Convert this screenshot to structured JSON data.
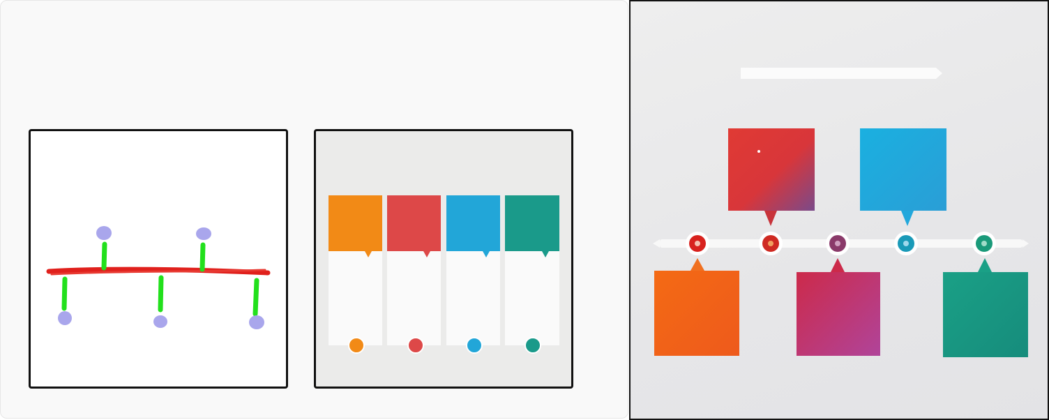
{
  "panels": {
    "sketch": {
      "nodes": 5,
      "colors": {
        "line": "#e0201c",
        "stem": "#22e01c",
        "node": "#a9a6ec"
      }
    },
    "template": {
      "cards": [
        {
          "color": "#f28a16"
        },
        {
          "color": "#dd4848"
        },
        {
          "color": "#22a6d8"
        },
        {
          "color": "#1a9a8a"
        }
      ]
    },
    "generated": {
      "top_cards": [
        {
          "color": "#e03a34"
        },
        {
          "color": "#1aa8de"
        }
      ],
      "bottom_cards": [
        {
          "color": "#f06a1a"
        },
        {
          "color": "#c43a6a"
        },
        {
          "color": "#1a9a8a"
        }
      ],
      "markers": [
        {
          "color": "#d8221e"
        },
        {
          "color": "#cf2a22"
        },
        {
          "color": "#8a3a6a"
        },
        {
          "color": "#1a9ab8"
        },
        {
          "color": "#1a9a7a"
        }
      ]
    }
  }
}
